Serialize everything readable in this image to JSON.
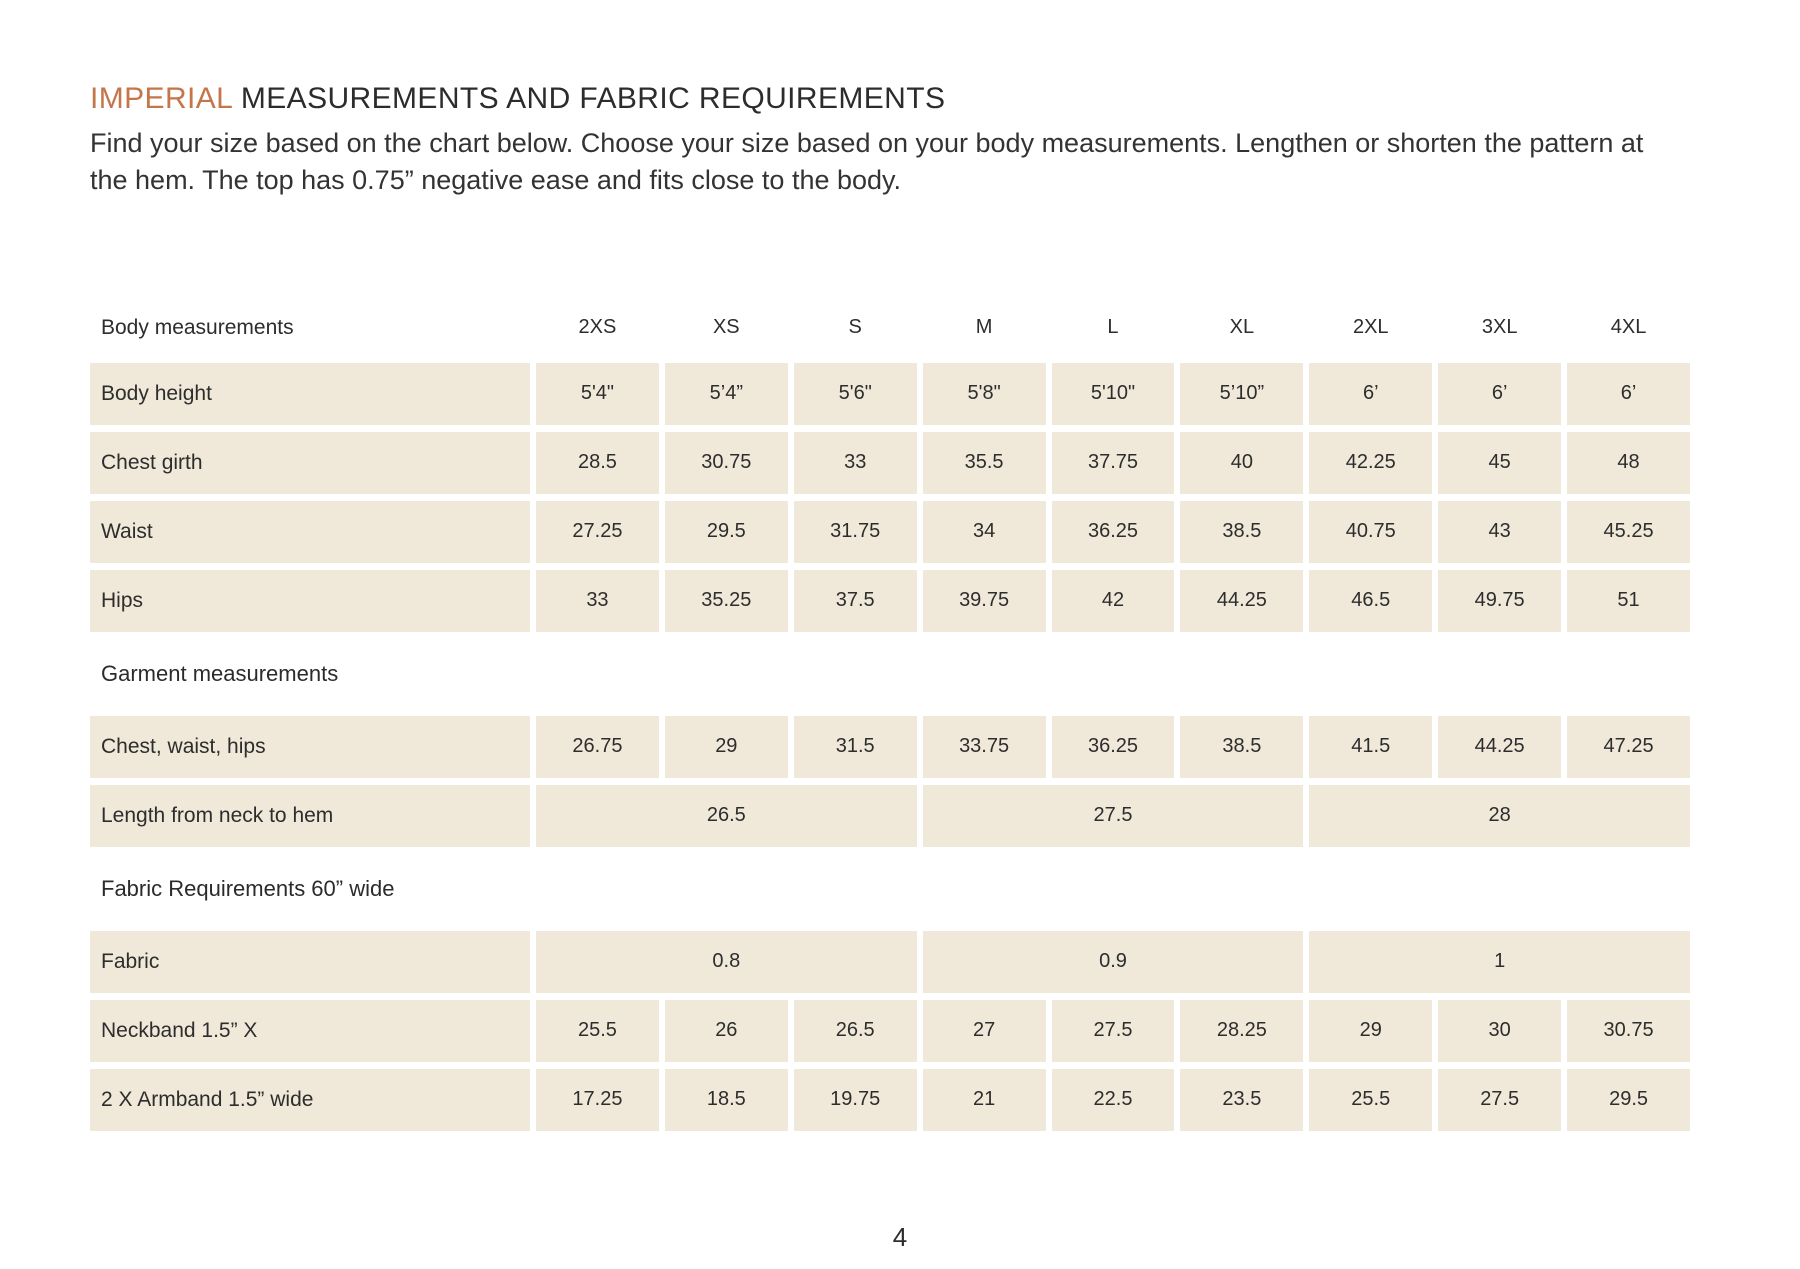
{
  "page": {
    "title_accent": "IMPERIAL",
    "title_rest": " MEASUREMENTS AND FABRIC REQUIREMENTS",
    "subtitle": "Find your size based on the chart below. Choose your size based on your body measurements. Lengthen or shorten the pattern at the hem. The top has 0.75” negative ease and fits close to the body.",
    "page_number": "4"
  },
  "colors": {
    "accent": "#c4764a",
    "cell_bg": "#f0e9d9",
    "text": "#2d2d2d"
  },
  "table": {
    "corner_label": "Body measurements",
    "size_headers": [
      "2XS",
      "XS",
      "S",
      "M",
      "L",
      "XL",
      "2XL",
      "3XL",
      "4XL"
    ],
    "sections": [
      {
        "title": null,
        "rows": [
          {
            "label": "Body height",
            "values": [
              "5'4\"",
              "5’4”",
              "5'6\"",
              "5'8\"",
              "5'10\"",
              "5’10”",
              "6’",
              "6’",
              "6’"
            ]
          },
          {
            "label": "Chest girth",
            "values": [
              "28.5",
              "30.75",
              "33",
              "35.5",
              "37.75",
              "40",
              "42.25",
              "45",
              "48"
            ]
          },
          {
            "label": "Waist",
            "values": [
              "27.25",
              "29.5",
              "31.75",
              "34",
              "36.25",
              "38.5",
              "40.75",
              "43",
              "45.25"
            ]
          },
          {
            "label": "Hips",
            "values": [
              "33",
              "35.25",
              "37.5",
              "39.75",
              "42",
              "44.25",
              "46.5",
              "49.75",
              "51"
            ]
          }
        ]
      },
      {
        "title": "Garment measurements",
        "rows": [
          {
            "label": "Chest, waist, hips",
            "values": [
              "26.75",
              "29",
              "31.5",
              "33.75",
              "36.25",
              "38.5",
              "41.5",
              "44.25",
              "47.25"
            ]
          },
          {
            "label": "Length from neck to hem",
            "merged": [
              {
                "text": "26.5",
                "span": 3
              },
              {
                "text": "27.5",
                "span": 3
              },
              {
                "text": "28",
                "span": 3
              }
            ]
          }
        ]
      },
      {
        "title": "Fabric Requirements 60” wide",
        "rows": [
          {
            "label": "Fabric",
            "merged": [
              {
                "text": "0.8",
                "span": 3
              },
              {
                "text": "0.9",
                "span": 3
              },
              {
                "text": "1",
                "span": 3
              }
            ]
          },
          {
            "label": "Neckband 1.5” X",
            "values": [
              "25.5",
              "26",
              "26.5",
              "27",
              "27.5",
              "28.25",
              "29",
              "30",
              "30.75"
            ]
          },
          {
            "label": "2 X Armband 1.5” wide",
            "values": [
              "17.25",
              "18.5",
              "19.75",
              "21",
              "22.5",
              "23.5",
              "25.5",
              "27.5",
              "29.5"
            ]
          }
        ]
      }
    ]
  }
}
